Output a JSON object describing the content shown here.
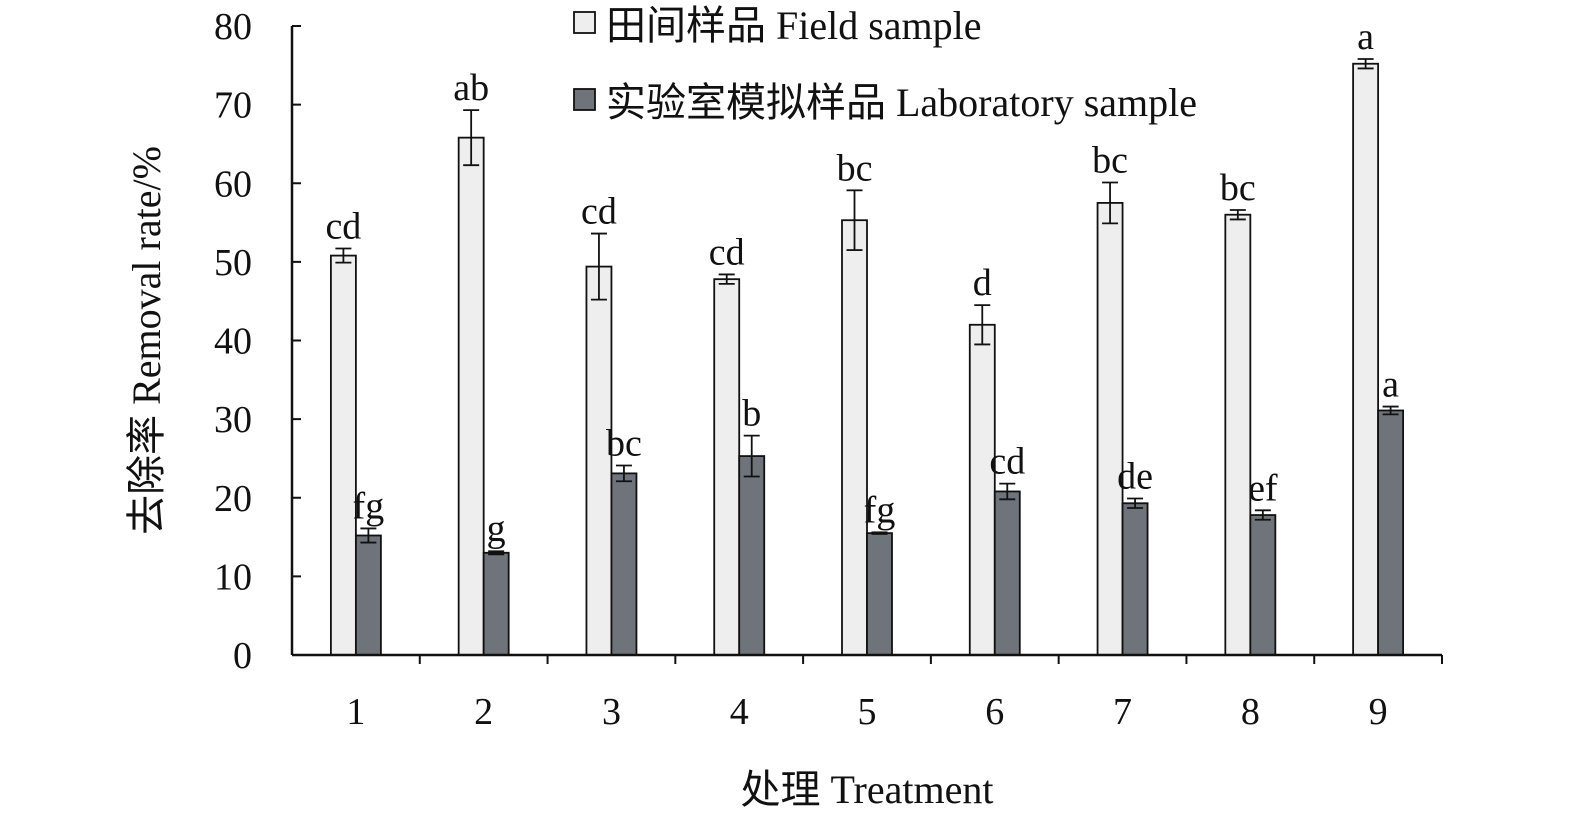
{
  "chart_data": {
    "type": "bar",
    "xlabel": "处理 Treatment",
    "ylabel": "去除率 Removal rate/%",
    "ylim": [
      0,
      80
    ],
    "yticks": [
      "0",
      "10",
      "20",
      "30",
      "40",
      "50",
      "60",
      "70",
      "80"
    ],
    "categories": [
      "1",
      "2",
      "3",
      "4",
      "5",
      "6",
      "7",
      "8",
      "9"
    ],
    "grid": false,
    "legend_position": "top",
    "series": [
      {
        "name": "田间样品 Field sample",
        "color": "#eeeeee",
        "values": [
          50.8,
          65.8,
          49.4,
          47.8,
          55.3,
          42.0,
          57.5,
          56.0,
          75.2
        ],
        "errors": [
          0.9,
          3.5,
          4.2,
          0.6,
          3.8,
          2.5,
          2.6,
          0.6,
          0.6
        ],
        "labels": [
          "cd",
          "ab",
          "cd",
          "cd",
          "bc",
          "d",
          "bc",
          "bc",
          "a"
        ]
      },
      {
        "name": "实验室模拟样品 Laboratory sample",
        "color": "#6f737a",
        "values": [
          15.2,
          13.0,
          23.1,
          25.3,
          15.5,
          20.8,
          19.3,
          17.8,
          31.1
        ],
        "errors": [
          0.9,
          0.2,
          1.0,
          2.6,
          0.1,
          1.0,
          0.6,
          0.6,
          0.5
        ],
        "labels": [
          "fg",
          "g",
          "bc",
          "b",
          "fg",
          "cd",
          "de",
          "ef",
          "a"
        ]
      }
    ]
  }
}
